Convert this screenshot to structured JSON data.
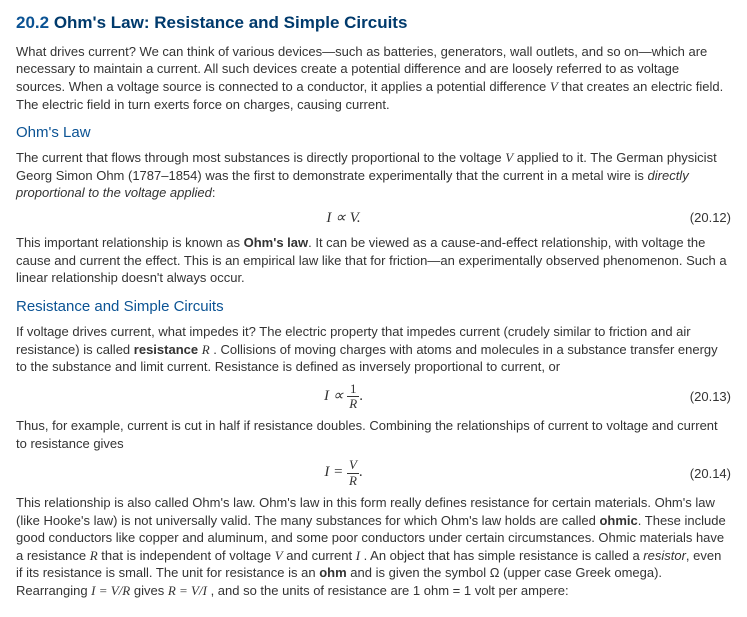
{
  "section": {
    "number": "20.2",
    "title": "Ohm's Law: Resistance and Simple Circuits"
  },
  "intro": {
    "p1a": "What drives current? We can think of various devices—such as batteries, generators, wall outlets, and so on—which are necessary to maintain a current. All such devices create a potential difference and are loosely referred to as voltage sources. When a voltage source is connected to a conductor, it applies a potential difference ",
    "V": "V",
    "p1b": " that creates an electric field. The electric field in turn exerts force on charges, causing current."
  },
  "ohms_law": {
    "heading": "Ohm's Law",
    "p1a": "The current that flows through most substances is directly proportional to the voltage ",
    "V": "V",
    "p1b": " applied to it. The German physicist Georg Simon Ohm (1787–1854) was the first to demonstrate experimentally that the current in a metal wire is ",
    "p1c": "directly proportional to the voltage applied",
    "p1d": ":",
    "eq1": "I ∝ V.",
    "eq1num": "(20.12)",
    "p2a": "This important relationship is known as ",
    "p2b": "Ohm's law",
    "p2c": ". It can be viewed as a cause-and-effect relationship, with voltage the cause and current the effect. This is an empirical law like that for friction—an experimentally observed phenomenon. Such a linear relationship doesn't always occur."
  },
  "resistance": {
    "heading": "Resistance and Simple Circuits",
    "p1a": "If voltage drives current, what impedes it? The electric property that impedes current (crudely similar to friction and air resistance) is called ",
    "p1b": "resistance",
    "R": "R",
    "p1c": " . Collisions of moving charges with atoms and molecules in a substance transfer energy to the substance and limit current. Resistance is defined as inversely proportional to current, or",
    "eq2_left": "I ∝",
    "eq2_top": "1",
    "eq2_bot": "R",
    "eq2_period": ".",
    "eq2num": "(20.13)",
    "p2": "Thus, for example, current is cut in half if resistance doubles. Combining the relationships of current to voltage and current to resistance gives",
    "eq3_left": "I =",
    "eq3_top": "V",
    "eq3_bot": "R",
    "eq3_period": ".",
    "eq3num": "(20.14)",
    "p3a": "This relationship is also called Ohm's law. Ohm's law in this form really defines resistance for certain materials. Ohm's law (like Hooke's law) is not universally valid. The many substances for which Ohm's law holds are called ",
    "p3b": "ohmic",
    "p3c": ". These include good conductors like copper and aluminum, and some poor conductors under certain circumstances. Ohmic materials have a resistance ",
    "p3d": " that is independent of voltage ",
    "p3e": " and current ",
    "I": "I",
    "p3f": " . An object that has simple resistance is called a ",
    "p3g": "resistor",
    "p3h": ", even if its resistance is small. The unit for resistance is an ",
    "p3i": "ohm",
    "p3j": " and is given the symbol ",
    "omega": "Ω",
    "p3k": " (upper case Greek omega). Rearranging ",
    "p3l": "I = V/R",
    "p3m": " gives ",
    "p3n": "R = V/I",
    "p3o": " , and so the units of resistance are 1 ohm = 1 volt per ampere:"
  }
}
